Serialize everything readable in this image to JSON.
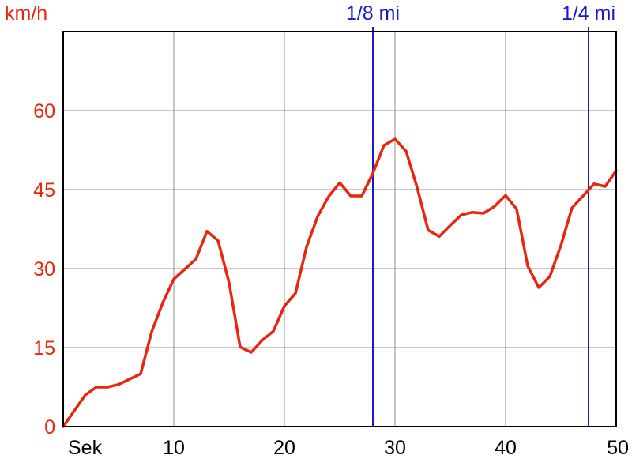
{
  "chart_data": {
    "type": "line",
    "xlabel": "Sek",
    "ylabel": "km/h",
    "xlim": [
      0,
      50
    ],
    "ylim": [
      0,
      75
    ],
    "x_ticks": [
      10,
      20,
      30,
      40,
      50
    ],
    "y_ticks": [
      0,
      15,
      30,
      45,
      60
    ],
    "grid": true,
    "series": [
      {
        "x": [
          0,
          1,
          2,
          3,
          4,
          5,
          6,
          7,
          8,
          9,
          10,
          11,
          12,
          13,
          14,
          15,
          16,
          17,
          18,
          19,
          20,
          21,
          22,
          23,
          24,
          25,
          26,
          27,
          28,
          29,
          30,
          31,
          32,
          33,
          34,
          35,
          36,
          37,
          38,
          39,
          40,
          41,
          42,
          43,
          44,
          45,
          46,
          47,
          48,
          49,
          50
        ],
        "y": [
          0,
          3,
          6,
          7.5,
          7.5,
          8,
          9,
          10,
          18,
          23.5,
          28,
          29.9,
          31.8,
          37.1,
          35.3,
          27.3,
          15.1,
          14.1,
          16.4,
          18.1,
          22.9,
          25.3,
          34.1,
          39.9,
          43.7,
          46.3,
          43.8,
          43.8,
          48.1,
          53.4,
          54.6,
          52.3,
          45.4,
          37.3,
          36.1,
          38.2,
          40.2,
          40.7,
          40.5,
          41.8,
          43.9,
          41.3,
          30.5,
          26.4,
          28.5,
          34.4,
          41.5,
          43.8,
          46.1,
          45.6,
          48.6
        ],
        "color": "#e8260e"
      }
    ],
    "markers": [
      {
        "label": "1/8 mi",
        "x": 28.0,
        "color": "#1a1acb"
      },
      {
        "label": "1/4 mi",
        "x": 47.5,
        "color": "#1a1acb"
      }
    ],
    "colors": {
      "axis_text": "#e8260e",
      "x_tick_text": "#000000",
      "grid": "#8c8c8c",
      "frame": "#000000"
    }
  }
}
